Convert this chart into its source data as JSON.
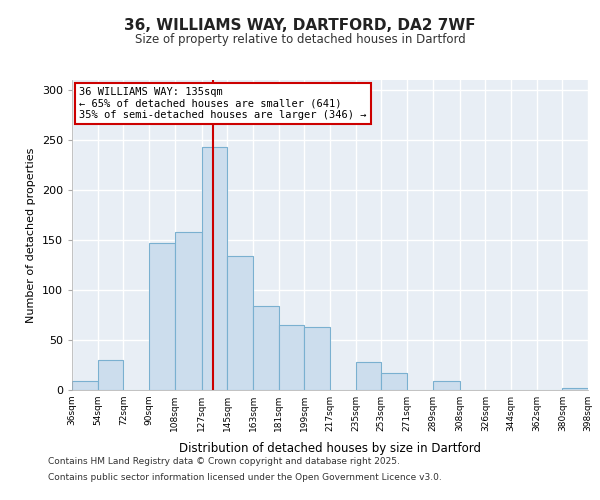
{
  "title": "36, WILLIAMS WAY, DARTFORD, DA2 7WF",
  "subtitle": "Size of property relative to detached houses in Dartford",
  "xlabel": "Distribution of detached houses by size in Dartford",
  "ylabel": "Number of detached properties",
  "bar_color": "#ccdded",
  "bar_edge_color": "#7ab0d0",
  "bins": [
    36,
    54,
    72,
    90,
    108,
    127,
    145,
    163,
    181,
    199,
    217,
    235,
    253,
    271,
    289,
    308,
    326,
    344,
    362,
    380,
    398
  ],
  "counts": [
    9,
    30,
    0,
    147,
    158,
    243,
    134,
    84,
    65,
    63,
    0,
    28,
    17,
    0,
    9,
    0,
    0,
    0,
    0,
    2
  ],
  "property_value": 135,
  "vline_color": "#cc0000",
  "annotation_text": "36 WILLIAMS WAY: 135sqm\n← 65% of detached houses are smaller (641)\n35% of semi-detached houses are larger (346) →",
  "annotation_box_color": "#ffffff",
  "annotation_box_edge": "#cc0000",
  "ylim": [
    0,
    310
  ],
  "yticks": [
    0,
    50,
    100,
    150,
    200,
    250,
    300
  ],
  "tick_labels": [
    "36sqm",
    "54sqm",
    "72sqm",
    "90sqm",
    "108sqm",
    "127sqm",
    "145sqm",
    "163sqm",
    "181sqm",
    "199sqm",
    "217sqm",
    "235sqm",
    "253sqm",
    "271sqm",
    "289sqm",
    "308sqm",
    "326sqm",
    "344sqm",
    "362sqm",
    "380sqm",
    "398sqm"
  ],
  "footer_line1": "Contains HM Land Registry data © Crown copyright and database right 2025.",
  "footer_line2": "Contains public sector information licensed under the Open Government Licence v3.0.",
  "plot_bg_color": "#e8eef5",
  "fig_bg_color": "#ffffff",
  "grid_color": "#ffffff"
}
